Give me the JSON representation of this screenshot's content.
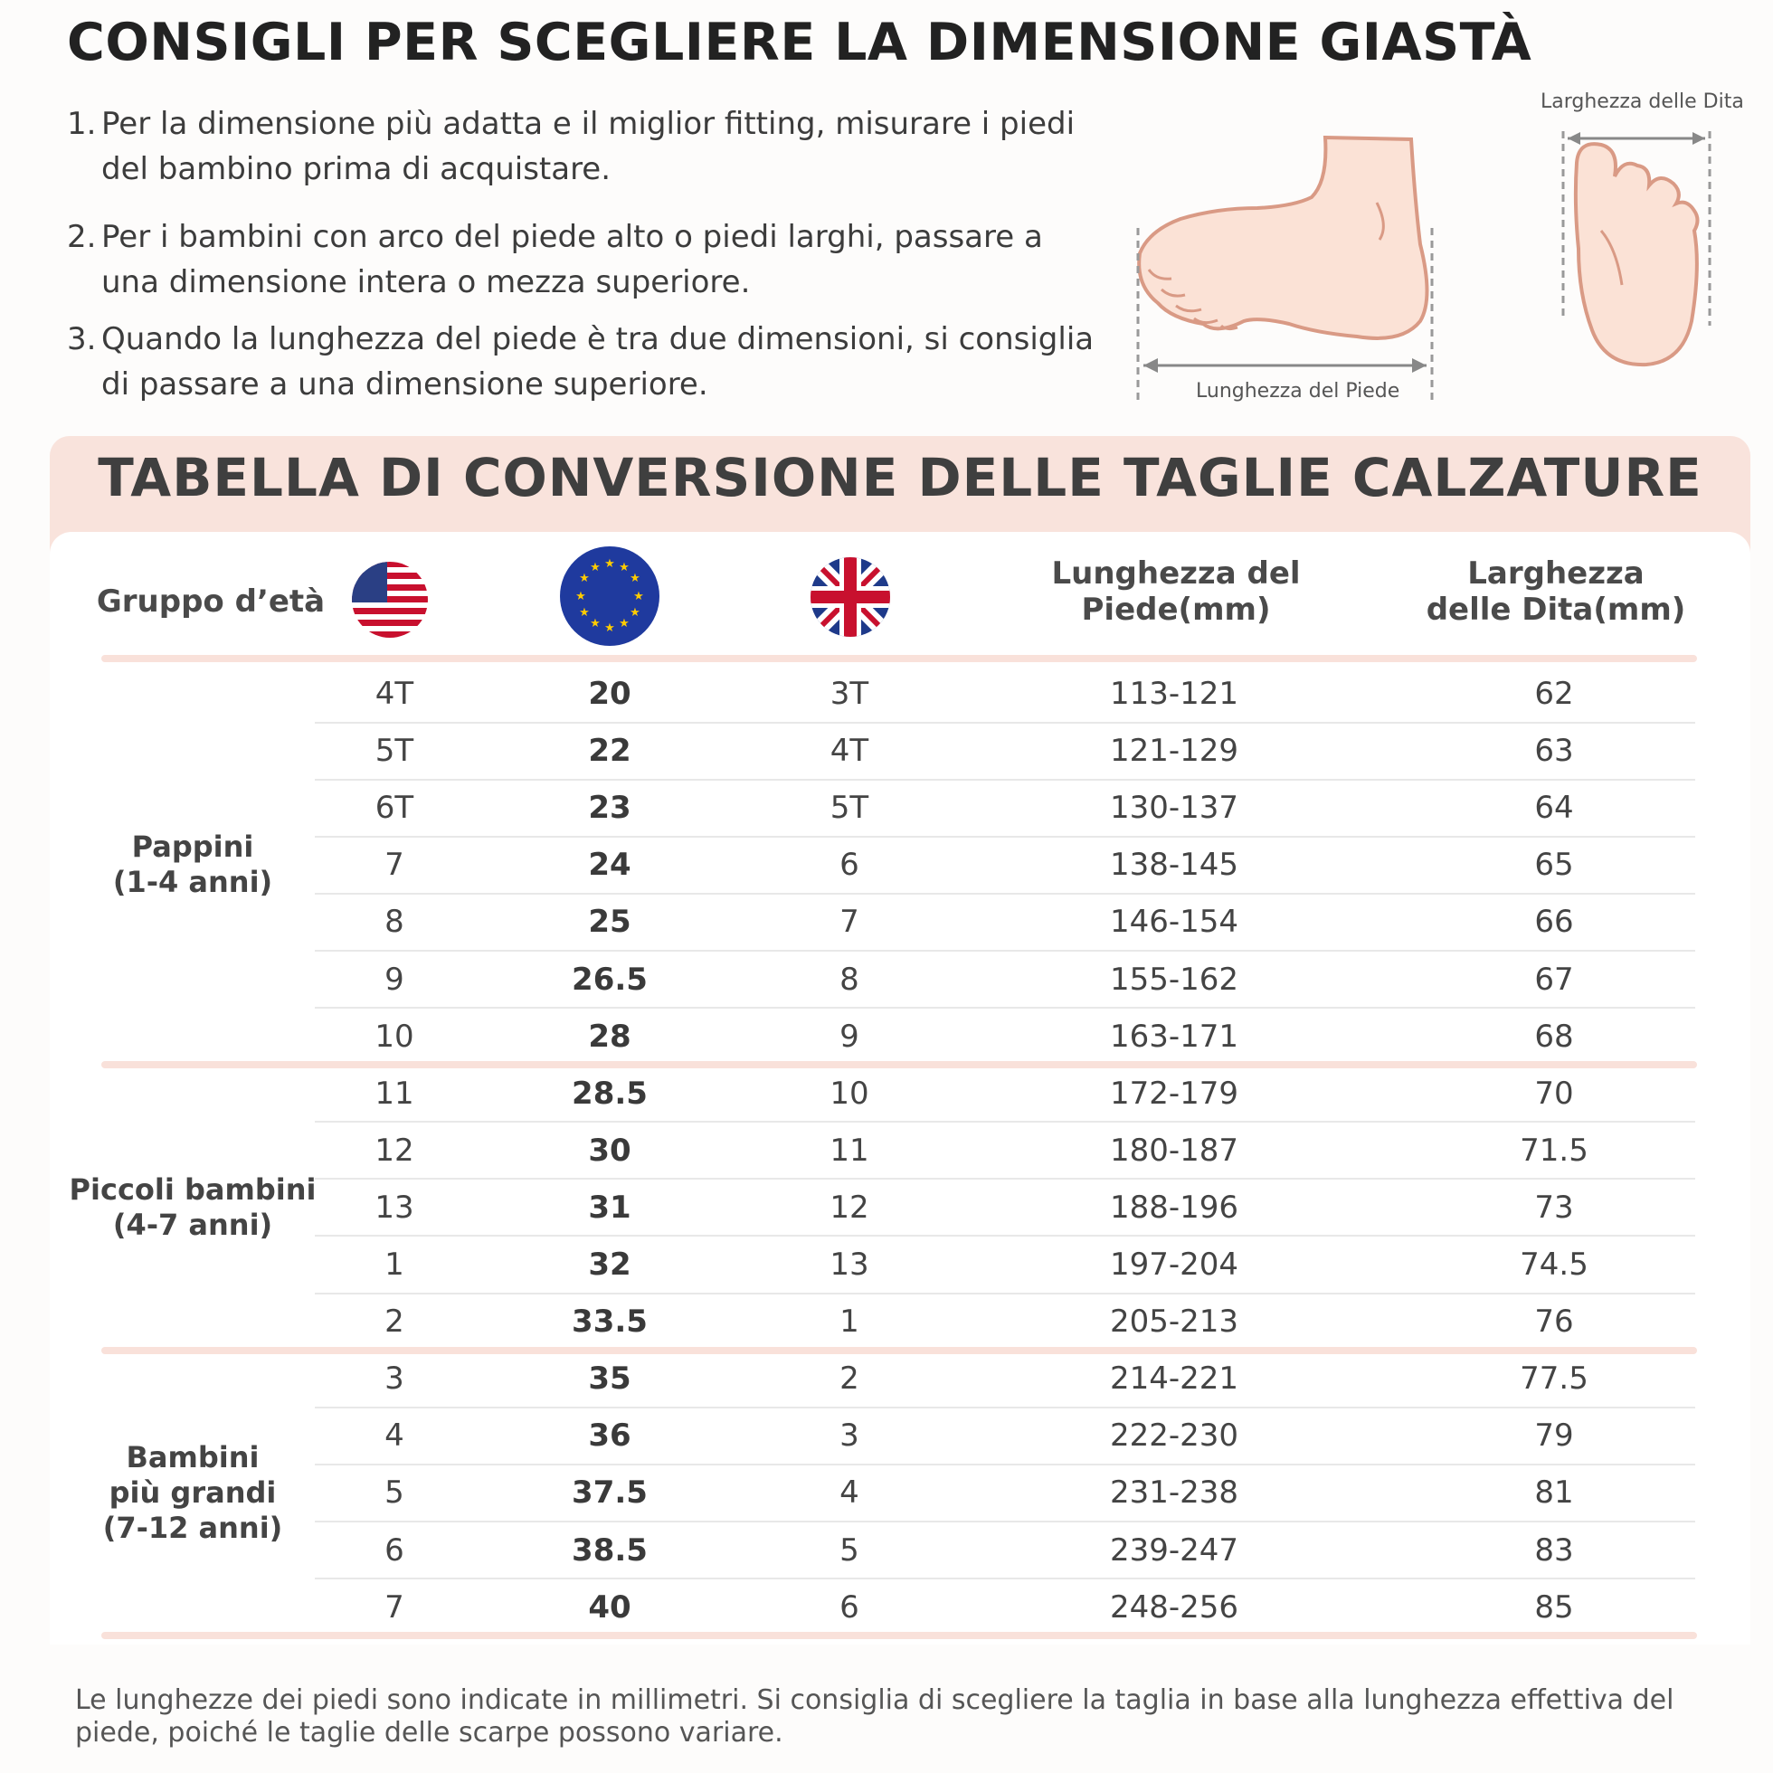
{
  "title": "CONSIGLI PER SCEGLIERE LA DIMENSIONE GIASTÀ",
  "tips": [
    {
      "num": "1.",
      "text": "Per la dimensione più adatta e il miglior fitting, misurare i piedi del bambino prima di acquistare."
    },
    {
      "num": "2.",
      "text": "Per i bambini con arco del piede alto o piedi larghi, passare a una dimensione intera o mezza superiore."
    },
    {
      "num": "3.",
      "text": "Quando la lunghezza del piede è tra due dimensioni, si consiglia di passare a una dimensione superiore."
    }
  ],
  "illustration": {
    "foot_length_label": "Lunghezza del Piede",
    "toe_width_label": "Larghezza delle Dita"
  },
  "table": {
    "title": "TABELLA DI CONVERSIONE DELLE TAGLIE CALZATURE",
    "headers": {
      "age_group": "Gruppo d’età",
      "us_flag": "us-flag-icon",
      "eu_flag": "eu-flag-icon",
      "uk_flag": "uk-flag-icon",
      "foot_length": "Lunghezza del Piede(mm)",
      "toe_width": "Larghezza delle Dita(mm)"
    },
    "groups": [
      {
        "label_lines": [
          "Pappini",
          "(1-4 anni)"
        ],
        "rows": [
          [
            "4T",
            "20",
            "3T",
            "113-121",
            "62"
          ],
          [
            "5T",
            "22",
            "4T",
            "121-129",
            "63"
          ],
          [
            "6T",
            "23",
            "5T",
            "130-137",
            "64"
          ],
          [
            "7",
            "24",
            "6",
            "138-145",
            "65"
          ],
          [
            "8",
            "25",
            "7",
            "146-154",
            "66"
          ],
          [
            "9",
            "26.5",
            "8",
            "155-162",
            "67"
          ],
          [
            "10",
            "28",
            "9",
            "163-171",
            "68"
          ]
        ]
      },
      {
        "label_lines": [
          "Piccoli bambini",
          "(4-7 anni)"
        ],
        "rows": [
          [
            "11",
            "28.5",
            "10",
            "172-179",
            "70"
          ],
          [
            "12",
            "30",
            "11",
            "180-187",
            "71.5"
          ],
          [
            "13",
            "31",
            "12",
            "188-196",
            "73"
          ],
          [
            "1",
            "32",
            "13",
            "197-204",
            "74.5"
          ],
          [
            "2",
            "33.5",
            "1",
            "205-213",
            "76"
          ]
        ]
      },
      {
        "label_lines": [
          "Bambini",
          "più grandi",
          "(7-12 anni)"
        ],
        "rows": [
          [
            "3",
            "35",
            "2",
            "214-221",
            "77.5"
          ],
          [
            "4",
            "36",
            "3",
            "222-230",
            "79"
          ],
          [
            "5",
            "37.5",
            "4",
            "231-238",
            "81"
          ],
          [
            "6",
            "38.5",
            "5",
            "239-247",
            "83"
          ],
          [
            "7",
            "40",
            "6",
            "248-256",
            "85"
          ]
        ]
      }
    ]
  },
  "footnote": "Le lunghezze dei piedi sono indicate in millimetri. Si consiglia di scegliere la taglia in base alla lunghezza effettiva del piede, poiché le taglie delle scarpe possono variare.",
  "colors": {
    "accent_pink": "#f9e3dc",
    "divider_pink": "#f9e1da",
    "skin": "#fbe2d6",
    "skin_outline": "#d99a85"
  }
}
